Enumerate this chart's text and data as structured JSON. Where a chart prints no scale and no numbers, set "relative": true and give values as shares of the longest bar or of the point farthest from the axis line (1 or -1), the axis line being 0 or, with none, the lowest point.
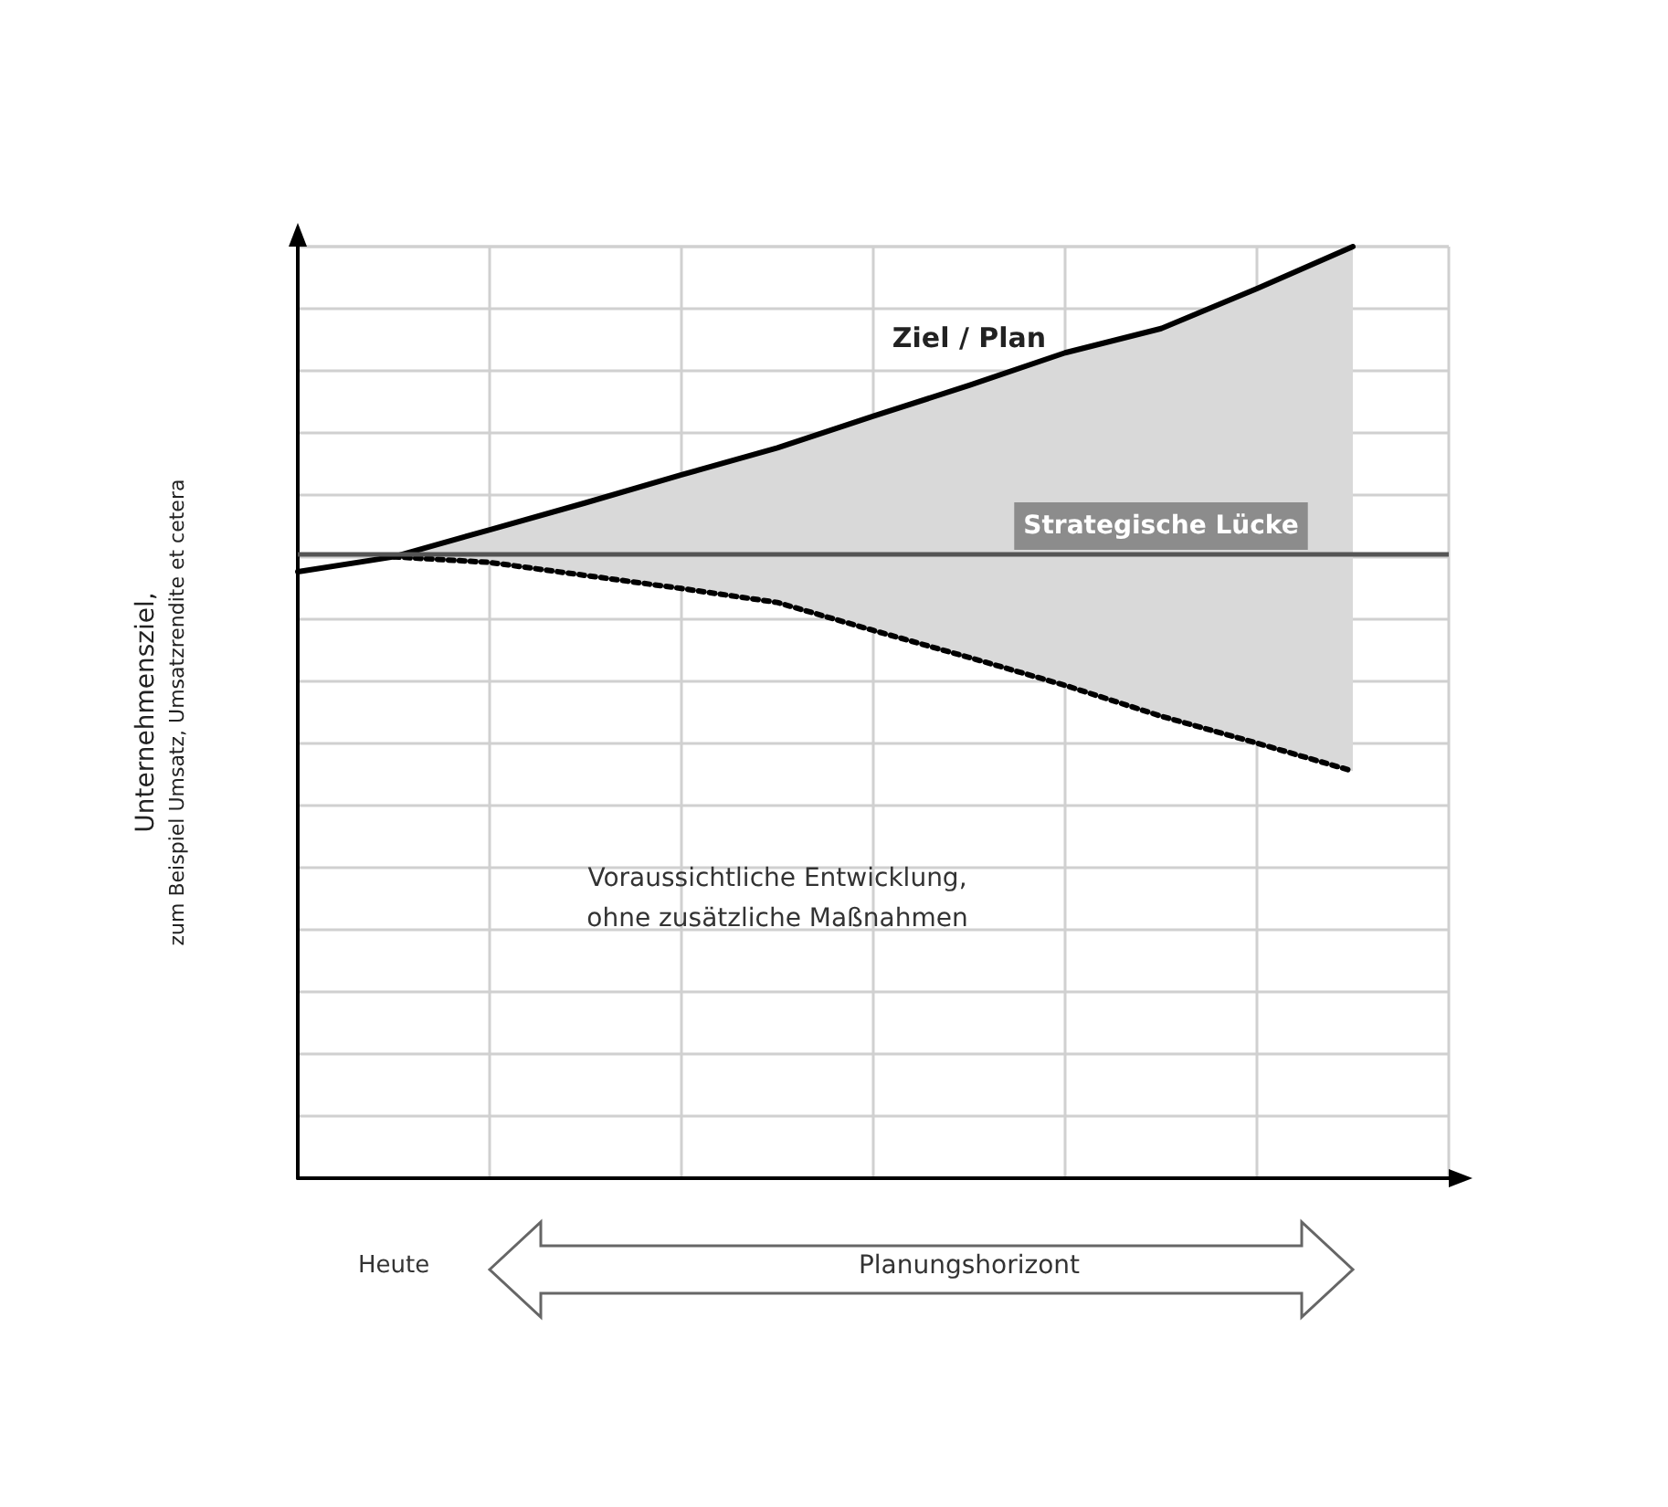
{
  "chart_data": {
    "type": "line",
    "relative": true,
    "ylabel": "Unternehmensziel,\nzum Beispiel Umsatz, Umsatzrendite et cetera",
    "categories": [
      null,
      null,
      null,
      null,
      null,
      null,
      null,
      null,
      null,
      null,
      null,
      null,
      null
    ],
    "series": [
      {
        "name": "Ziel / Plan",
        "color": "#000000",
        "line_style": "solid",
        "values": [
          0.651,
          0.667,
          0.696,
          0.725,
          0.755,
          0.784,
          0.818,
          0.851,
          0.886,
          0.912,
          0.955,
          1,
          null
        ],
        "lower": [
          null,
          0.667,
          0.661,
          0.647,
          0.633,
          0.618,
          0.588,
          0.559,
          0.529,
          0.496,
          0.467,
          0.437,
          null
        ],
        "upper": [
          null,
          0.667,
          0.696,
          0.725,
          0.755,
          0.784,
          0.818,
          0.851,
          0.886,
          0.912,
          0.955,
          1,
          null
        ]
      },
      {
        "color": "#000000",
        "line_style": "dotted",
        "values": [
          null,
          0.667,
          0.661,
          0.647,
          0.633,
          0.618,
          0.588,
          0.559,
          0.529,
          0.496,
          0.467,
          0.437,
          null
        ]
      }
    ],
    "ref_lines": [
      {
        "axis": "y",
        "value": 0.667,
        "color": "#555555"
      }
    ],
    "annotations": [
      "Strategische Lücke",
      "Voraussichtliche Entwicklung,\nohne zusätzliche Maßnahmen",
      "Heute",
      "Planungshorizont"
    ],
    "grid": true,
    "marker": "none",
    "legend": false
  }
}
